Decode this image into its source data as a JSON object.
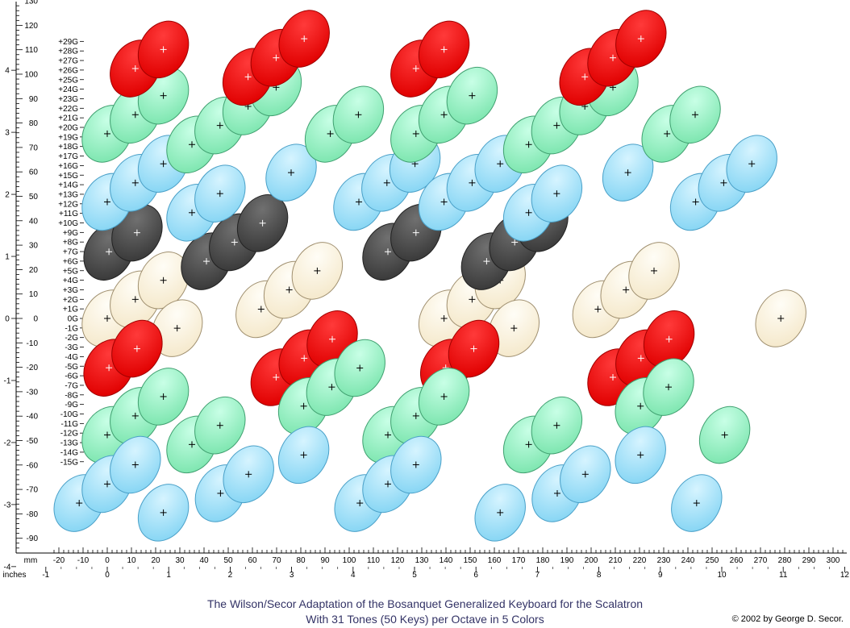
{
  "diagram": {
    "caption_line1": "The Wilson/Secor Adaptation of the Bosanquet Generalized Keyboard for the Scalatron",
    "caption_line2": "With 31 Tones (50 Keys) per Octave in 5 Colors",
    "copyright": "© 2002 by George D. Secor.",
    "units": {
      "x_top": "mm",
      "x_bottom": "inches"
    },
    "x_mm_ticks": [
      -20,
      -10,
      0,
      10,
      20,
      30,
      40,
      50,
      60,
      70,
      80,
      90,
      100,
      110,
      120,
      130,
      140,
      150,
      160,
      170,
      180,
      190,
      200,
      210,
      220,
      230,
      240,
      250,
      260,
      270,
      280,
      290,
      300
    ],
    "x_inch_ticks": [
      -1,
      0,
      1,
      2,
      3,
      4,
      5,
      6,
      7,
      8,
      9,
      10,
      11,
      12
    ],
    "y_mm_ticks": [
      130,
      120,
      110,
      100,
      90,
      80,
      70,
      60,
      50,
      40,
      30,
      20,
      10,
      0,
      -10,
      -20,
      -30,
      -40,
      -50,
      -60,
      -70,
      -80,
      -90
    ],
    "y_inch_ticks": [
      4,
      3,
      2,
      1,
      0,
      -1,
      -2,
      -3,
      -4
    ],
    "row_labels": [
      "+29G",
      "+28G",
      "+27G",
      "+26G",
      "+25G",
      "+24G",
      "+23G",
      "+22G",
      "+21G",
      "+20G",
      "+19G",
      "+18G",
      "+17G",
      "+16G",
      "+15G",
      "+14G",
      "+13G",
      "+12G",
      "+11G",
      "+10G",
      "+9G",
      "+8G",
      "+7G",
      "+6G",
      "+5G",
      "+4G",
      "+3G",
      "+2G",
      "+1G",
      "0G",
      "-1G",
      "-2G",
      "-3G",
      "-4G",
      "-5G",
      "-6G",
      "-7G",
      "-8G",
      "-9G",
      "-10G",
      "-11G",
      "-12G",
      "-13G",
      "-14G",
      "-15G"
    ],
    "colors": {
      "red": "#ff0000",
      "green": "#99ffcc",
      "blue": "#aae6ff",
      "black": "#555555",
      "cream": "#fff8e6"
    },
    "keys": [
      {
        "x": 0,
        "y": 0,
        "c": "cream"
      },
      {
        "x": 11.6,
        "y": 7.8,
        "c": "cream"
      },
      {
        "x": 23.2,
        "y": 15.6,
        "c": "cream"
      },
      {
        "x": 63.6,
        "y": 3.8,
        "c": "cream"
      },
      {
        "x": 75.2,
        "y": 11.7,
        "c": "cream"
      },
      {
        "x": 86.8,
        "y": 19.5,
        "c": "cream"
      },
      {
        "x": 139.2,
        "y": 0,
        "c": "cream"
      },
      {
        "x": 150.8,
        "y": 7.8,
        "c": "cream"
      },
      {
        "x": 162.4,
        "y": 15.6,
        "c": "cream"
      },
      {
        "x": 202.8,
        "y": 3.8,
        "c": "cream"
      },
      {
        "x": 214.4,
        "y": 11.7,
        "c": "cream"
      },
      {
        "x": 226,
        "y": 19.5,
        "c": "cream"
      },
      {
        "x": 278.4,
        "y": 0,
        "c": "cream"
      },
      {
        "x": 28.9,
        "y": -4,
        "c": "cream"
      },
      {
        "x": 168.1,
        "y": -4,
        "c": "cream"
      },
      {
        "x": 0.7,
        "y": 27.3,
        "c": "black"
      },
      {
        "x": 12.3,
        "y": 35.1,
        "c": "black"
      },
      {
        "x": 41,
        "y": 23.4,
        "c": "black"
      },
      {
        "x": 52.6,
        "y": 31.2,
        "c": "black"
      },
      {
        "x": 64.2,
        "y": 39,
        "c": "black"
      },
      {
        "x": 116,
        "y": 27.3,
        "c": "black"
      },
      {
        "x": 127.6,
        "y": 35.1,
        "c": "black"
      },
      {
        "x": 156.8,
        "y": 23.4,
        "c": "black"
      },
      {
        "x": 168.4,
        "y": 31.2,
        "c": "black"
      },
      {
        "x": 180,
        "y": 39,
        "c": "black"
      },
      {
        "x": 0,
        "y": 47.7,
        "c": "blue"
      },
      {
        "x": 11.6,
        "y": 55.5,
        "c": "blue"
      },
      {
        "x": 23.2,
        "y": 63.3,
        "c": "blue"
      },
      {
        "x": 35,
        "y": 43.3,
        "c": "blue"
      },
      {
        "x": 46.6,
        "y": 51.1,
        "c": "blue"
      },
      {
        "x": 76,
        "y": 59.7,
        "c": "blue"
      },
      {
        "x": 104,
        "y": 47.7,
        "c": "blue"
      },
      {
        "x": 115.6,
        "y": 55.5,
        "c": "blue"
      },
      {
        "x": 127.2,
        "y": 63.3,
        "c": "blue"
      },
      {
        "x": 139.2,
        "y": 47.7,
        "c": "blue"
      },
      {
        "x": 150.8,
        "y": 55.5,
        "c": "blue"
      },
      {
        "x": 162.4,
        "y": 63.3,
        "c": "blue"
      },
      {
        "x": 174.2,
        "y": 43.3,
        "c": "blue"
      },
      {
        "x": 185.8,
        "y": 51.1,
        "c": "blue"
      },
      {
        "x": 215.2,
        "y": 59.7,
        "c": "blue"
      },
      {
        "x": 243.2,
        "y": 47.7,
        "c": "blue"
      },
      {
        "x": 254.8,
        "y": 55.5,
        "c": "blue"
      },
      {
        "x": 266.4,
        "y": 63.3,
        "c": "blue"
      },
      {
        "x": 0,
        "y": 75.6,
        "c": "green"
      },
      {
        "x": 11.6,
        "y": 83.4,
        "c": "green"
      },
      {
        "x": 23.2,
        "y": 91.2,
        "c": "green"
      },
      {
        "x": 35,
        "y": 71.2,
        "c": "green"
      },
      {
        "x": 46.6,
        "y": 79,
        "c": "green"
      },
      {
        "x": 58.2,
        "y": 86.8,
        "c": "green"
      },
      {
        "x": 69.8,
        "y": 94.6,
        "c": "green"
      },
      {
        "x": 92.2,
        "y": 75.6,
        "c": "green"
      },
      {
        "x": 103.8,
        "y": 83.4,
        "c": "green"
      },
      {
        "x": 127.6,
        "y": 75.6,
        "c": "green"
      },
      {
        "x": 139.2,
        "y": 83.4,
        "c": "green"
      },
      {
        "x": 150.8,
        "y": 91.2,
        "c": "green"
      },
      {
        "x": 174.2,
        "y": 71.2,
        "c": "green"
      },
      {
        "x": 185.8,
        "y": 79,
        "c": "green"
      },
      {
        "x": 197.4,
        "y": 86.8,
        "c": "green"
      },
      {
        "x": 209,
        "y": 94.6,
        "c": "green"
      },
      {
        "x": 231.4,
        "y": 75.6,
        "c": "green"
      },
      {
        "x": 243,
        "y": 83.4,
        "c": "green"
      },
      {
        "x": 11.6,
        "y": 102.3,
        "c": "red"
      },
      {
        "x": 23.2,
        "y": 110.1,
        "c": "red"
      },
      {
        "x": 58.2,
        "y": 98.9,
        "c": "red"
      },
      {
        "x": 69.8,
        "y": 106.7,
        "c": "red"
      },
      {
        "x": 81.4,
        "y": 114.5,
        "c": "red"
      },
      {
        "x": 127.6,
        "y": 102.3,
        "c": "red"
      },
      {
        "x": 139.2,
        "y": 110.1,
        "c": "red"
      },
      {
        "x": 197.4,
        "y": 98.9,
        "c": "red"
      },
      {
        "x": 209,
        "y": 106.7,
        "c": "red"
      },
      {
        "x": 220.6,
        "y": 114.5,
        "c": "red"
      },
      {
        "x": 0.7,
        "y": -20.2,
        "c": "red"
      },
      {
        "x": 12.3,
        "y": -12.4,
        "c": "red"
      },
      {
        "x": 69.8,
        "y": -24.1,
        "c": "red"
      },
      {
        "x": 81.4,
        "y": -16.3,
        "c": "red"
      },
      {
        "x": 93,
        "y": -8.5,
        "c": "red"
      },
      {
        "x": 139.9,
        "y": -20.2,
        "c": "red"
      },
      {
        "x": 151.5,
        "y": -12.4,
        "c": "red"
      },
      {
        "x": 209,
        "y": -24.1,
        "c": "red"
      },
      {
        "x": 220.6,
        "y": -16.3,
        "c": "red"
      },
      {
        "x": 232.2,
        "y": -8.5,
        "c": "red"
      },
      {
        "x": 0,
        "y": -47.7,
        "c": "green"
      },
      {
        "x": 11.6,
        "y": -39.9,
        "c": "green"
      },
      {
        "x": 23.2,
        "y": -32,
        "c": "green"
      },
      {
        "x": 35,
        "y": -51.6,
        "c": "green"
      },
      {
        "x": 46.6,
        "y": -43.8,
        "c": "green"
      },
      {
        "x": 81.2,
        "y": -35.9,
        "c": "green"
      },
      {
        "x": 92.8,
        "y": -28.1,
        "c": "green"
      },
      {
        "x": 104.4,
        "y": -20.3,
        "c": "green"
      },
      {
        "x": 116,
        "y": -47.7,
        "c": "green"
      },
      {
        "x": 127.6,
        "y": -39.9,
        "c": "green"
      },
      {
        "x": 139.2,
        "y": -32,
        "c": "green"
      },
      {
        "x": 174.2,
        "y": -51.6,
        "c": "green"
      },
      {
        "x": 185.8,
        "y": -43.8,
        "c": "green"
      },
      {
        "x": 220.4,
        "y": -35.9,
        "c": "green"
      },
      {
        "x": 232,
        "y": -28.1,
        "c": "green"
      },
      {
        "x": 255.2,
        "y": -47.7,
        "c": "green"
      },
      {
        "x": -11.6,
        "y": -75.6,
        "c": "blue"
      },
      {
        "x": 0,
        "y": -67.8,
        "c": "blue"
      },
      {
        "x": 11.6,
        "y": -59.9,
        "c": "blue"
      },
      {
        "x": 23.2,
        "y": -79.5,
        "c": "blue"
      },
      {
        "x": 46.8,
        "y": -71.6,
        "c": "blue"
      },
      {
        "x": 58.4,
        "y": -63.8,
        "c": "blue"
      },
      {
        "x": 81.2,
        "y": -55.9,
        "c": "blue"
      },
      {
        "x": 104.4,
        "y": -75.6,
        "c": "blue"
      },
      {
        "x": 116,
        "y": -67.8,
        "c": "blue"
      },
      {
        "x": 127.6,
        "y": -59.9,
        "c": "blue"
      },
      {
        "x": 162.4,
        "y": -79.5,
        "c": "blue"
      },
      {
        "x": 186,
        "y": -71.6,
        "c": "blue"
      },
      {
        "x": 197.6,
        "y": -63.8,
        "c": "blue"
      },
      {
        "x": 220.4,
        "y": -55.9,
        "c": "blue"
      },
      {
        "x": 243.6,
        "y": -75.6,
        "c": "blue"
      }
    ]
  }
}
